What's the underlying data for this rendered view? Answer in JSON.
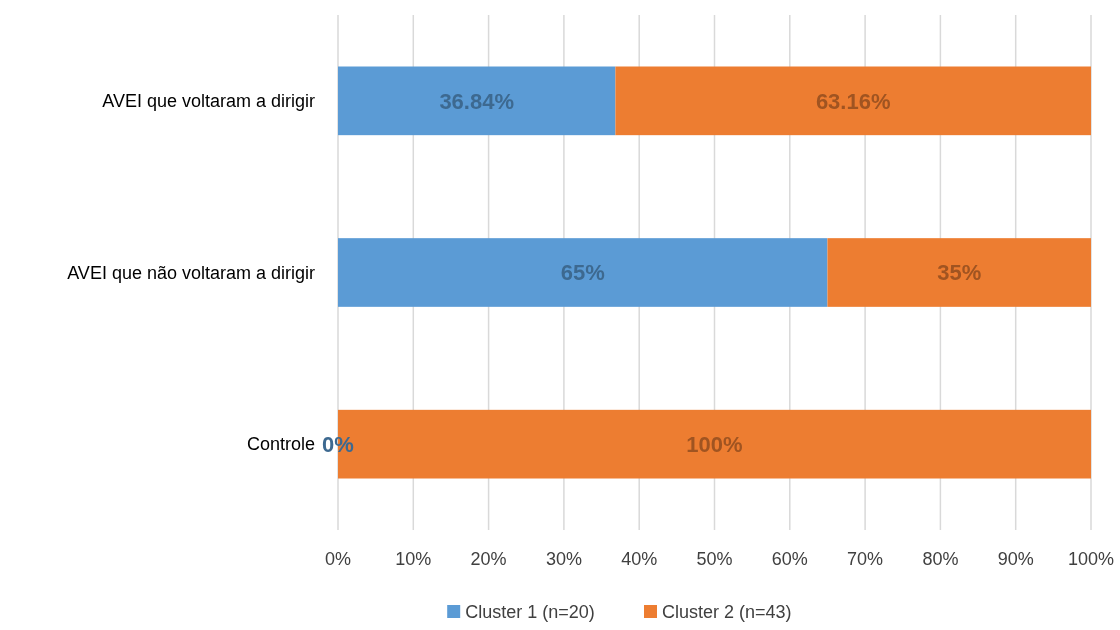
{
  "chart_data": {
    "type": "bar",
    "orientation": "horizontal",
    "stacked": true,
    "categories": [
      "AVEI que voltaram a dirigir",
      "AVEI que não voltaram a dirigir",
      "Controle"
    ],
    "series": [
      {
        "name": "Cluster 1 (n=20)",
        "color": "#5b9bd5",
        "values": [
          36.84,
          65,
          0
        ],
        "value_labels": [
          "36.84%",
          "65%",
          null
        ]
      },
      {
        "name": "Cluster 2 (n=43)",
        "color": "#ed7d31",
        "values": [
          63.16,
          35,
          100
        ],
        "value_labels": [
          "63.16%",
          "35%",
          "100%"
        ]
      }
    ],
    "xlim": [
      0,
      100
    ],
    "xticks": [
      {
        "value": 0,
        "label": "0%"
      },
      {
        "value": 10,
        "label": "10%"
      },
      {
        "value": 20,
        "label": "20%"
      },
      {
        "value": 30,
        "label": "30%"
      },
      {
        "value": 40,
        "label": "40%"
      },
      {
        "value": 50,
        "label": "50%"
      },
      {
        "value": 60,
        "label": "60%"
      },
      {
        "value": 70,
        "label": "70%"
      },
      {
        "value": 80,
        "label": "80%"
      },
      {
        "value": 90,
        "label": "90%"
      },
      {
        "value": 100,
        "label": "100%"
      }
    ],
    "annotations": [
      {
        "text": "0%",
        "x": 0,
        "y": "Controle"
      }
    ],
    "grid": "x",
    "legend": "bottom"
  }
}
